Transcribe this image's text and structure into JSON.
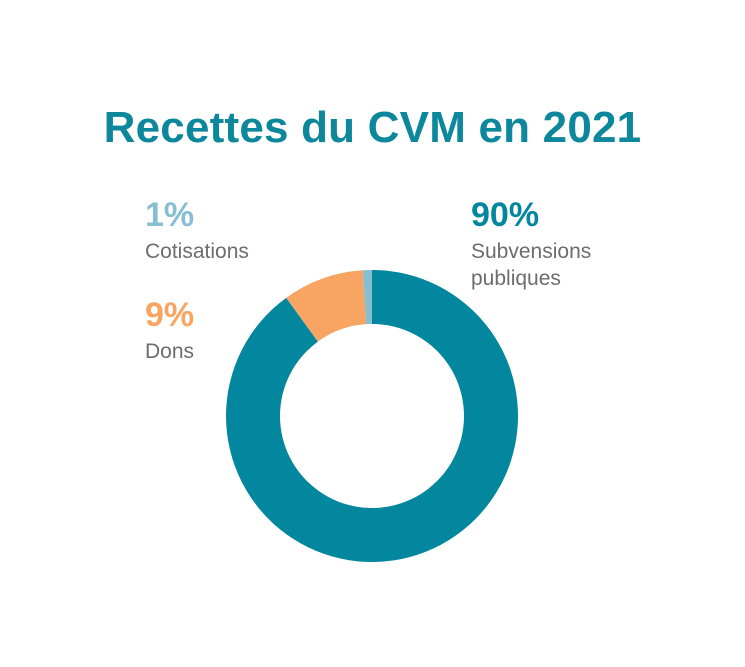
{
  "chart_data": {
    "type": "pie",
    "variant": "donut",
    "title": "Recettes du CVM en 2021",
    "slices": [
      {
        "label": "Subvensions publiques",
        "label_lines": "Subvensions\npubliques",
        "value": 90,
        "display": "90%",
        "color": "#02879e"
      },
      {
        "label": "Dons",
        "label_lines": "Dons",
        "value": 9,
        "display": "9%",
        "color": "#f8a462"
      },
      {
        "label": "Cotisations",
        "label_lines": "Cotisations",
        "value": 1,
        "display": "1%",
        "color": "#86bfd2"
      }
    ],
    "legend_placement": "around chart",
    "text_color": "#6d6d6d",
    "title_color": "#0c879b"
  }
}
